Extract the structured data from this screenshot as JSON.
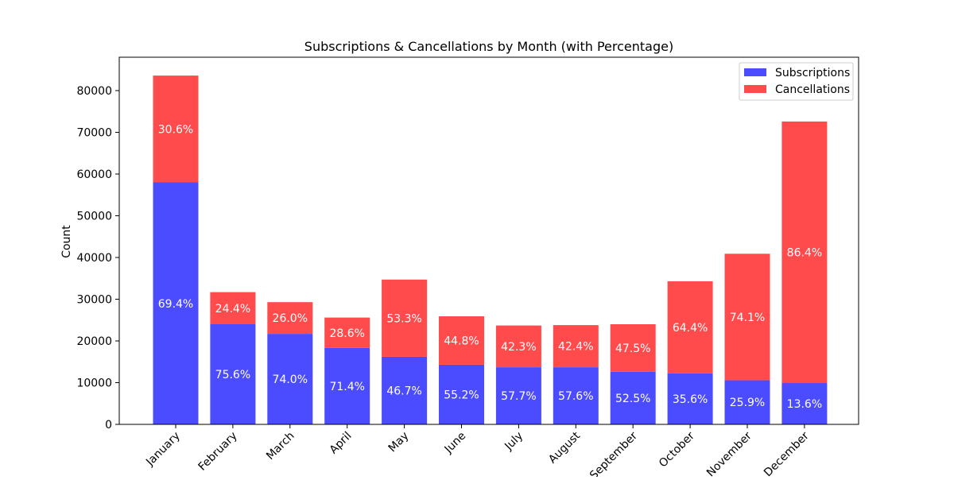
{
  "chart_data": {
    "type": "bar",
    "stacked": true,
    "title": "Subscriptions & Cancellations by Month (with Percentage)",
    "xlabel": "",
    "ylabel": "Count",
    "ylim": [
      0,
      88000
    ],
    "yticks": [
      0,
      10000,
      20000,
      30000,
      40000,
      50000,
      60000,
      70000,
      80000
    ],
    "grid": false,
    "legend_position": "top-right",
    "categories": [
      "January",
      "February",
      "March",
      "April",
      "May",
      "June",
      "July",
      "August",
      "September",
      "October",
      "November",
      "December"
    ],
    "series": [
      {
        "name": "Subscriptions",
        "color": "#4b4bff",
        "values": [
          58000,
          24000,
          21700,
          18300,
          16200,
          14300,
          13700,
          13700,
          12600,
          12200,
          10600,
          9900
        ],
        "labels": [
          "69.4%",
          "75.6%",
          "74.0%",
          "71.4%",
          "46.7%",
          "55.2%",
          "57.7%",
          "57.6%",
          "52.5%",
          "35.6%",
          "25.9%",
          "13.6%"
        ]
      },
      {
        "name": "Cancellations",
        "color": "#ff4b4b",
        "values": [
          25600,
          7700,
          7600,
          7300,
          18500,
          11600,
          10000,
          10100,
          11400,
          22100,
          30300,
          62700
        ],
        "labels": [
          "30.6%",
          "24.4%",
          "26.0%",
          "28.6%",
          "53.3%",
          "44.8%",
          "42.3%",
          "42.4%",
          "47.5%",
          "64.4%",
          "74.1%",
          "86.4%"
        ]
      }
    ]
  }
}
